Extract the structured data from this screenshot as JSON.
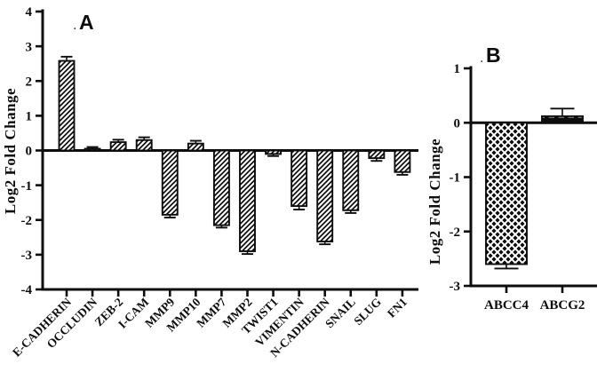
{
  "figure": {
    "background": "#ffffff",
    "ink_color": "#0d0d0d",
    "dot_mark": ".",
    "panel_a_letter_color": "#1c2740",
    "panel_b_letter_color": "#0d0d0d"
  },
  "chart_data": [
    {
      "id": "A",
      "type": "bar",
      "panel_label": "A",
      "title": "",
      "xlabel": "",
      "ylabel": "Log2 Fold Change",
      "ylim": [
        -4,
        4
      ],
      "yticks": [
        4,
        3,
        2,
        1,
        0,
        -1,
        -2,
        -3,
        -4
      ],
      "grid": false,
      "legend": "none",
      "bar_fill_pattern": "diagonal-hatch",
      "bar_outline_color": "#0d0d0d",
      "categories": [
        "E-CADHERIN",
        "OCCLUDIN",
        "ZEB-2",
        "I-CAM",
        "MMP9",
        "MMP10",
        "MMP7",
        "MMP2",
        "TWIST1",
        "VIMENTIN",
        "N-CADHERIN",
        "SNAIL",
        "SLUG",
        "FN1"
      ],
      "values": [
        2.58,
        0.05,
        0.24,
        0.3,
        -1.85,
        0.2,
        -2.15,
        -2.9,
        -0.1,
        -1.6,
        -2.62,
        -1.72,
        -0.22,
        -0.62
      ],
      "errors": [
        0.12,
        0.05,
        0.07,
        0.08,
        0.08,
        0.08,
        0.07,
        0.08,
        0.06,
        0.1,
        0.08,
        0.08,
        0.08,
        0.08
      ]
    },
    {
      "id": "B",
      "type": "bar",
      "panel_label": "B",
      "title": "",
      "xlabel": "",
      "ylabel": "Log2 Fold Change",
      "ylim": [
        -3,
        1
      ],
      "yticks": [
        1,
        0,
        -1,
        -2,
        -3
      ],
      "grid": false,
      "legend": "none",
      "bar_fill_patterns": [
        "diamond-dots",
        "black-with-white-dashes"
      ],
      "bar_outline_color": "#0d0d0d",
      "categories": [
        "ABCC4",
        "ABCG2"
      ],
      "values": [
        -2.6,
        0.12
      ],
      "errors": [
        0.08,
        0.14
      ]
    }
  ]
}
